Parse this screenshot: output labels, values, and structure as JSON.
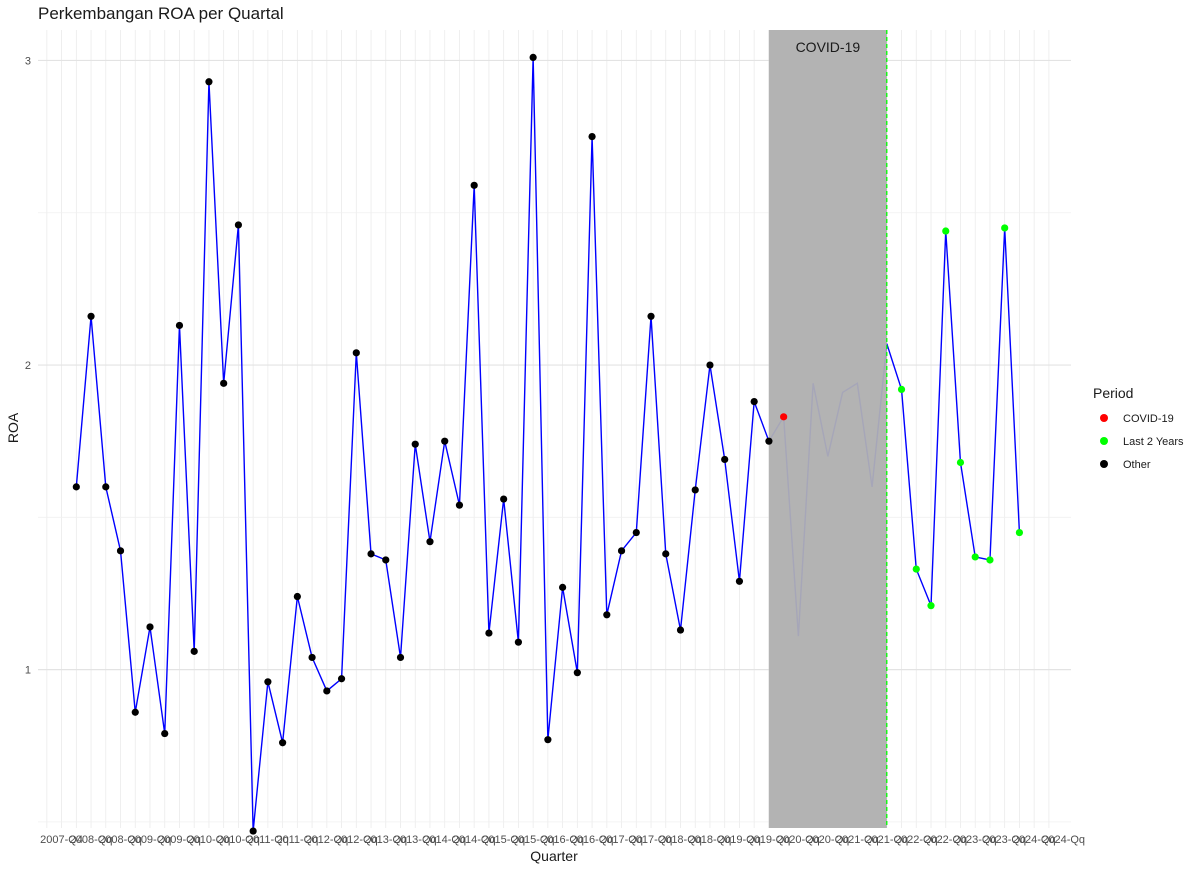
{
  "chart_data": {
    "type": "line",
    "title": "Perkembangan ROA per Quartal",
    "xlabel": "Quarter",
    "ylabel": "ROA",
    "ylim": [
      0.48,
      3.1
    ],
    "yticks": [
      1,
      2,
      3
    ],
    "grid": true,
    "line_color": "#0000ff",
    "legend": {
      "title": "Period",
      "placement": "right",
      "entries": [
        {
          "label": "COVID-19",
          "color": "#ff0000"
        },
        {
          "label": "Last 2 Years",
          "color": "#00ff00"
        },
        {
          "label": "Other",
          "color": "#000000"
        }
      ]
    },
    "shaded_region": {
      "label": "COVID-19",
      "from_index": 48.0,
      "to_index": 56.0,
      "color": "#b3b3b3"
    },
    "vline": {
      "index": 56.0,
      "color": "#00ff00",
      "style": "dashed"
    },
    "x_tick_labels": [
      "2007-Q4",
      "2008-Qq",
      "2008-Qq",
      "2009-Qq",
      "2009-Qq",
      "2010-Qq",
      "2010-Qq",
      "2011-Qq",
      "2011-Qq",
      "2012-Qq",
      "2012-Qq",
      "2013-Qq",
      "2013-Qq",
      "2014-Qq",
      "2014-Qq",
      "2015-Qq",
      "2015-Qq",
      "2016-Qq",
      "2016-Qq",
      "2017-Qq",
      "2017-Qq",
      "2018-Qq",
      "2018-Qq",
      "2019-Qq",
      "2019-Qq",
      "2020-Qq",
      "2020-Qq",
      "2021-Qq",
      "2021-Qq",
      "2022-Qq",
      "2022-Qq",
      "2023-Qq",
      "2023-Qq",
      "2024-Qq",
      "2024-Qq"
    ],
    "points": [
      {
        "i": 1,
        "y": 1.6,
        "period": "Other"
      },
      {
        "i": 2,
        "y": 2.16,
        "period": "Other"
      },
      {
        "i": 3,
        "y": 1.6,
        "period": "Other"
      },
      {
        "i": 4,
        "y": 1.39,
        "period": "Other"
      },
      {
        "i": 5,
        "y": 0.86,
        "period": "Other"
      },
      {
        "i": 6,
        "y": 1.14,
        "period": "Other"
      },
      {
        "i": 7,
        "y": 0.79,
        "period": "Other"
      },
      {
        "i": 8,
        "y": 2.13,
        "period": "Other"
      },
      {
        "i": 9,
        "y": 1.06,
        "period": "Other"
      },
      {
        "i": 10,
        "y": 2.93,
        "period": "Other"
      },
      {
        "i": 11,
        "y": 1.94,
        "period": "Other"
      },
      {
        "i": 12,
        "y": 2.46,
        "period": "Other"
      },
      {
        "i": 13,
        "y": 0.47,
        "period": "Other"
      },
      {
        "i": 14,
        "y": 0.96,
        "period": "Other"
      },
      {
        "i": 15,
        "y": 0.76,
        "period": "Other"
      },
      {
        "i": 16,
        "y": 1.24,
        "period": "Other"
      },
      {
        "i": 17,
        "y": 1.04,
        "period": "Other"
      },
      {
        "i": 18,
        "y": 0.93,
        "period": "Other"
      },
      {
        "i": 19,
        "y": 0.97,
        "period": "Other"
      },
      {
        "i": 20,
        "y": 2.04,
        "period": "Other"
      },
      {
        "i": 21,
        "y": 1.38,
        "period": "Other"
      },
      {
        "i": 22,
        "y": 1.36,
        "period": "Other"
      },
      {
        "i": 23,
        "y": 1.04,
        "period": "Other"
      },
      {
        "i": 24,
        "y": 1.74,
        "period": "Other"
      },
      {
        "i": 25,
        "y": 1.42,
        "period": "Other"
      },
      {
        "i": 26,
        "y": 1.75,
        "period": "Other"
      },
      {
        "i": 27,
        "y": 1.54,
        "period": "Other"
      },
      {
        "i": 28,
        "y": 2.59,
        "period": "Other"
      },
      {
        "i": 29,
        "y": 1.12,
        "period": "Other"
      },
      {
        "i": 30,
        "y": 1.56,
        "period": "Other"
      },
      {
        "i": 31,
        "y": 1.09,
        "period": "Other"
      },
      {
        "i": 32,
        "y": 3.01,
        "period": "Other"
      },
      {
        "i": 33,
        "y": 0.77,
        "period": "Other"
      },
      {
        "i": 34,
        "y": 1.27,
        "period": "Other"
      },
      {
        "i": 35,
        "y": 0.99,
        "period": "Other"
      },
      {
        "i": 36,
        "y": 2.75,
        "period": "Other"
      },
      {
        "i": 37,
        "y": 1.18,
        "period": "Other"
      },
      {
        "i": 38,
        "y": 1.39,
        "period": "Other"
      },
      {
        "i": 39,
        "y": 1.45,
        "period": "Other"
      },
      {
        "i": 40,
        "y": 2.16,
        "period": "Other"
      },
      {
        "i": 41,
        "y": 1.38,
        "period": "Other"
      },
      {
        "i": 42,
        "y": 1.13,
        "period": "Other"
      },
      {
        "i": 43,
        "y": 1.59,
        "period": "Other"
      },
      {
        "i": 44,
        "y": 2.0,
        "period": "Other"
      },
      {
        "i": 45,
        "y": 1.69,
        "period": "Other"
      },
      {
        "i": 46,
        "y": 1.29,
        "period": "Other"
      },
      {
        "i": 47,
        "y": 1.88,
        "period": "Other"
      },
      {
        "i": 48,
        "y": 1.75,
        "period": "Other"
      },
      {
        "i": 49,
        "y": 1.83,
        "period": "COVID-19"
      },
      {
        "i": 50,
        "y": 1.11,
        "period": "COVID-19"
      },
      {
        "i": 51,
        "y": 1.94,
        "period": "COVID-19"
      },
      {
        "i": 52,
        "y": 1.7,
        "period": "COVID-19"
      },
      {
        "i": 53,
        "y": 1.91,
        "period": "COVID-19"
      },
      {
        "i": 54,
        "y": 1.94,
        "period": "COVID-19"
      },
      {
        "i": 55,
        "y": 1.6,
        "period": "COVID-19"
      },
      {
        "i": 56,
        "y": 2.07,
        "period": "COVID-19"
      },
      {
        "i": 57,
        "y": 1.92,
        "period": "Last 2 Years"
      },
      {
        "i": 58,
        "y": 1.33,
        "period": "Last 2 Years"
      },
      {
        "i": 59,
        "y": 1.21,
        "period": "Last 2 Years"
      },
      {
        "i": 60,
        "y": 2.44,
        "period": "Last 2 Years"
      },
      {
        "i": 61,
        "y": 1.68,
        "period": "Last 2 Years"
      },
      {
        "i": 62,
        "y": 1.37,
        "period": "Last 2 Years"
      },
      {
        "i": 63,
        "y": 1.36,
        "period": "Last 2 Years"
      },
      {
        "i": 64,
        "y": 2.45,
        "period": "Last 2 Years"
      },
      {
        "i": 65,
        "y": 1.45,
        "period": "Last 2 Years"
      }
    ]
  }
}
